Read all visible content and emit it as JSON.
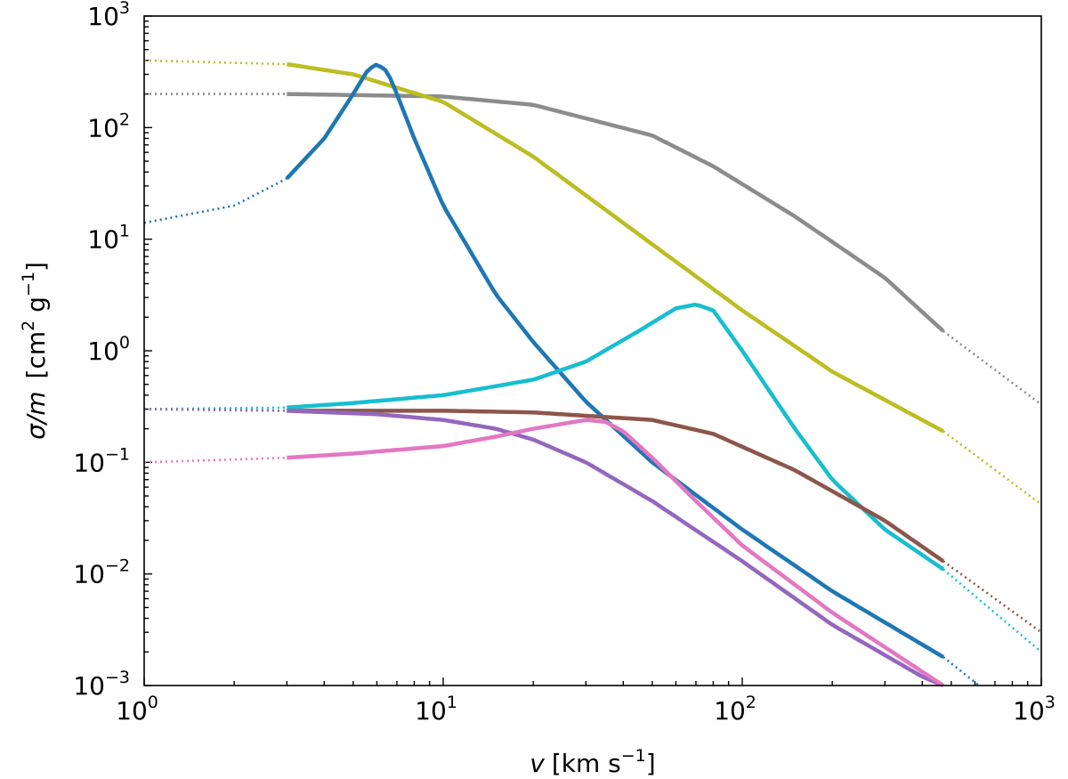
{
  "chart_data": {
    "type": "line",
    "x_scale": "log",
    "y_scale": "log",
    "xlim": [
      1,
      1000
    ],
    "ylim": [
      0.001,
      1000
    ],
    "x_ticks": [
      {
        "base": "10",
        "exp": "0",
        "value": 1
      },
      {
        "base": "10",
        "exp": "1",
        "value": 10
      },
      {
        "base": "10",
        "exp": "2",
        "value": 100
      },
      {
        "base": "10",
        "exp": "3",
        "value": 1000
      }
    ],
    "y_ticks": [
      {
        "base": "10",
        "exp": "−3",
        "value": 0.001
      },
      {
        "base": "10",
        "exp": "−2",
        "value": 0.01
      },
      {
        "base": "10",
        "exp": "−1",
        "value": 0.1
      },
      {
        "base": "10",
        "exp": "0",
        "value": 1
      },
      {
        "base": "10",
        "exp": "1",
        "value": 10
      },
      {
        "base": "10",
        "exp": "2",
        "value": 100
      },
      {
        "base": "10",
        "exp": "3",
        "value": 1000
      }
    ],
    "xlabel": {
      "var": "v",
      "unit": "[km s",
      "sup": "−1",
      "close": "]"
    },
    "ylabel": {
      "var": "σ/m",
      "unit_open": "[cm",
      "sup1": "2",
      "unit_mid": " g",
      "sup2": "−1",
      "close": "]"
    },
    "solid_range": [
      3,
      470
    ],
    "series": [
      {
        "name": "gray",
        "color": "#8c8c8c",
        "x": [
          1,
          3,
          10,
          20,
          50,
          80,
          150,
          300,
          470,
          1000
        ],
        "y": [
          200,
          200,
          190,
          160,
          85,
          45,
          16,
          4.5,
          1.5,
          0.33
        ]
      },
      {
        "name": "olive",
        "color": "#bcbd22",
        "x": [
          1,
          3,
          5,
          10,
          20,
          50,
          100,
          200,
          470,
          1000
        ],
        "y": [
          400,
          370,
          300,
          170,
          55,
          9,
          2.3,
          0.65,
          0.19,
          0.042
        ]
      },
      {
        "name": "blue",
        "color": "#1f77b4",
        "x": [
          1,
          2,
          3,
          4,
          5,
          5.6,
          6,
          6.5,
          7,
          8,
          10,
          15,
          20,
          30,
          50,
          100,
          200,
          470,
          650
        ],
        "y": [
          14,
          20,
          35,
          80,
          200,
          330,
          370,
          320,
          200,
          80,
          20,
          3.2,
          1.2,
          0.35,
          0.1,
          0.025,
          0.007,
          0.0018,
          0.0009
        ]
      },
      {
        "name": "cyan",
        "color": "#17becf",
        "x": [
          1,
          3,
          5,
          10,
          20,
          30,
          45,
          60,
          70,
          80,
          100,
          150,
          200,
          300,
          470,
          1000
        ],
        "y": [
          0.3,
          0.31,
          0.34,
          0.4,
          0.55,
          0.8,
          1.5,
          2.4,
          2.6,
          2.3,
          1.0,
          0.2,
          0.07,
          0.025,
          0.011,
          0.002
        ]
      },
      {
        "name": "brown",
        "color": "#8c564b",
        "x": [
          1,
          3,
          10,
          20,
          50,
          80,
          150,
          300,
          470,
          1000
        ],
        "y": [
          0.3,
          0.29,
          0.29,
          0.28,
          0.24,
          0.18,
          0.085,
          0.03,
          0.013,
          0.003
        ]
      },
      {
        "name": "purple",
        "color": "#9467bd",
        "x": [
          1,
          3,
          6,
          10,
          15,
          20,
          30,
          50,
          100,
          200,
          400,
          470
        ],
        "y": [
          0.3,
          0.29,
          0.27,
          0.24,
          0.2,
          0.16,
          0.1,
          0.045,
          0.013,
          0.0035,
          0.0012,
          0.001
        ]
      },
      {
        "name": "pink",
        "color": "#e377c2",
        "x": [
          1,
          3,
          5,
          10,
          15,
          20,
          30,
          35,
          40,
          50,
          70,
          100,
          200,
          470
        ],
        "y": [
          0.1,
          0.11,
          0.12,
          0.14,
          0.17,
          0.2,
          0.24,
          0.23,
          0.19,
          0.11,
          0.045,
          0.018,
          0.0045,
          0.001
        ]
      }
    ]
  }
}
